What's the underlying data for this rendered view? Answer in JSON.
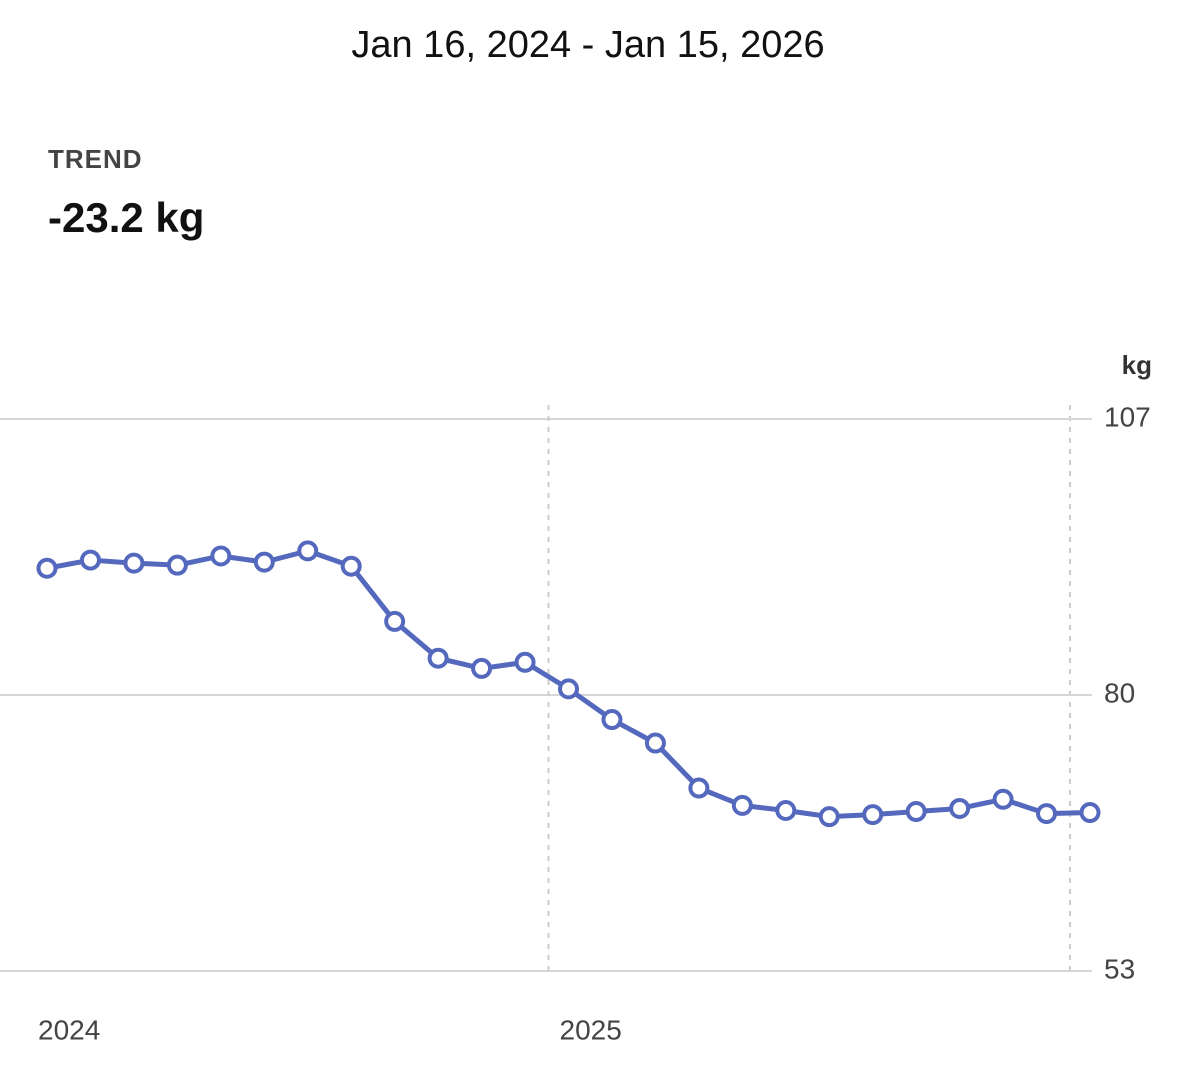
{
  "header": {
    "date_range": "Jan 16, 2024 - Jan 15, 2026",
    "metric_label": "TREND",
    "metric_value": "-23.2 kg"
  },
  "chart_data": {
    "type": "line",
    "y_unit": "kg",
    "categories": [
      "2024",
      null,
      null,
      null,
      null,
      null,
      null,
      null,
      null,
      null,
      null,
      null,
      "2025",
      null,
      null,
      null,
      null,
      null,
      null,
      null,
      null,
      null,
      null,
      null,
      null
    ],
    "values": [
      92.4,
      93.2,
      92.9,
      92.7,
      93.6,
      93.0,
      94.1,
      92.6,
      87.2,
      83.6,
      82.6,
      83.2,
      80.6,
      77.6,
      75.3,
      70.9,
      69.2,
      68.7,
      68.1,
      68.3,
      68.6,
      68.9,
      69.8,
      68.4,
      68.5
    ],
    "color": "#5469bd",
    "ylim": [
      53,
      107
    ],
    "yticks": [
      53,
      80,
      107
    ],
    "grid": true
  }
}
